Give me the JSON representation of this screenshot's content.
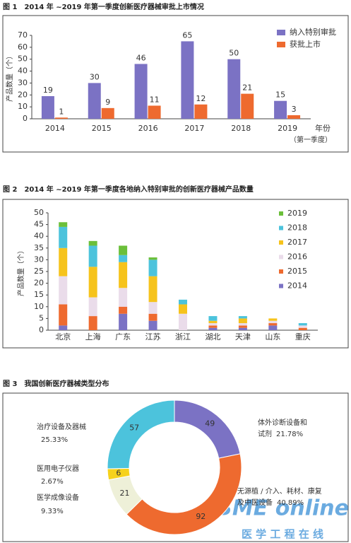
{
  "chart_data": [
    {
      "type": "bar",
      "title": "图 1　2014 年 ~2019 年第一季度创新医疗器械审批上市情况",
      "y_label": "产品数量（个）",
      "x_label": "年份",
      "x_label_note": "（第一季度）",
      "categories": [
        "2014",
        "2015",
        "2016",
        "2017",
        "2018",
        "2019"
      ],
      "series": [
        {
          "name": "纳入特别审批",
          "color": "#7b72c4",
          "values": [
            19,
            30,
            46,
            65,
            50,
            15
          ]
        },
        {
          "name": "获批上市",
          "color": "#ee6a2f",
          "values": [
            1,
            9,
            11,
            12,
            21,
            3
          ]
        }
      ],
      "ylim": [
        0,
        70
      ],
      "yticks": [
        0,
        10,
        20,
        30,
        40,
        50,
        60,
        70
      ],
      "legend": "top-right",
      "data_labels": true
    },
    {
      "type": "stacked-bar",
      "title": "图 2　2014 年 ~2019 年第一季度各地纳入特别审批的创新医疗器械产品数量",
      "y_label": "产品数量（个）",
      "categories": [
        "北京",
        "上海",
        "广东",
        "江苏",
        "浙江",
        "湖北",
        "天津",
        "山东",
        "重庆"
      ],
      "series": [
        {
          "name": "2014",
          "color": "#7b72c4",
          "values": [
            2,
            0,
            7,
            4,
            0,
            1,
            1,
            2,
            0
          ]
        },
        {
          "name": "2015",
          "color": "#ee6a2f",
          "values": [
            9,
            6,
            3,
            3,
            0,
            1,
            1,
            1,
            1
          ]
        },
        {
          "name": "2016",
          "color": "#eadcea",
          "values": [
            12,
            8,
            8,
            5,
            7,
            1,
            1,
            1,
            1
          ]
        },
        {
          "name": "2017",
          "color": "#f6c31c",
          "values": [
            12,
            13,
            11,
            11,
            4,
            1,
            2,
            1,
            0
          ]
        },
        {
          "name": "2018",
          "color": "#4cc3dc",
          "values": [
            9,
            9,
            3,
            7,
            2,
            2,
            1,
            0,
            1
          ]
        },
        {
          "name": "2019",
          "color": "#6bbf3a",
          "values": [
            2,
            2,
            4,
            1,
            0,
            0,
            0,
            0,
            0
          ]
        }
      ],
      "ylim": [
        0,
        50
      ],
      "yticks": [
        0,
        5,
        10,
        15,
        20,
        25,
        30,
        35,
        40,
        45,
        50
      ],
      "legend": "right"
    },
    {
      "type": "donut",
      "title": "图 3　我国创新医疗器械类型分布",
      "label_lines": [
        [
          "体外诊断设备和",
          "试剂"
        ],
        [
          "无源植 / 介入、耗材、康复",
          "及中医设备"
        ],
        [
          "医学成像设备"
        ],
        [
          "医用电子仪器"
        ],
        [
          "治疗设备及器械"
        ]
      ],
      "percent_labels": [
        "21.78%",
        "40.89%",
        "9.33%",
        "2.67%",
        "25.33%"
      ],
      "values": [
        49,
        92,
        21,
        6,
        57
      ],
      "colors": [
        "#7b72c4",
        "#ee6a2f",
        "#eef0d8",
        "#f6d21c",
        "#4cc3dc"
      ]
    }
  ],
  "watermark": {
    "logo": "BME online",
    "subtitle": "医 学 工 程 在 线"
  }
}
